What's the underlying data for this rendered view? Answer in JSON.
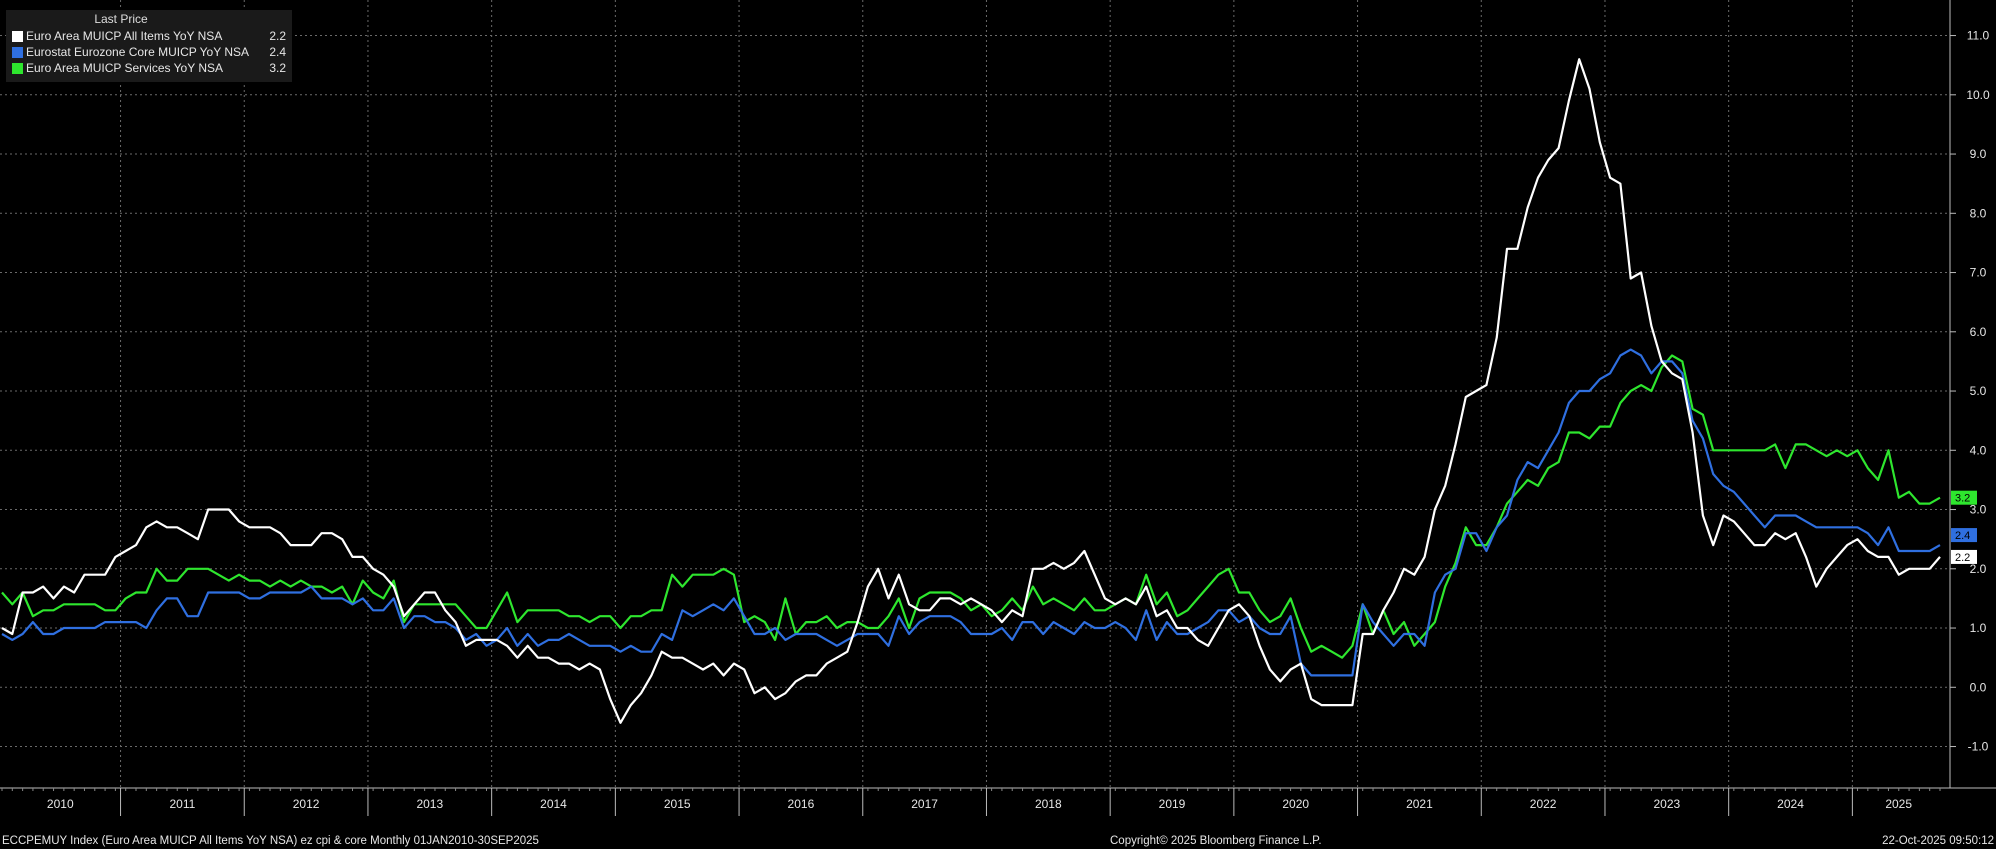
{
  "legend": {
    "header": "Last Price",
    "items": [
      {
        "name": "Euro Area MUICP All Items YoY NSA",
        "value": "2.2",
        "color": "#ffffff"
      },
      {
        "name": "Eurostat Eurozone Core MUICP YoY NSA",
        "value": "2.4",
        "color": "#2f6fe0"
      },
      {
        "name": "Euro Area MUICP Services YoY NSA",
        "value": "3.2",
        "color": "#2ee62e"
      }
    ]
  },
  "footer": {
    "left": "ECCPEMUY Index (Euro Area MUICP All Items YoY NSA) ez cpi & core Monthly 01JAN2010-30SEP2025",
    "center": "Copyright© 2025 Bloomberg Finance L.P.",
    "right": "22-Oct-2025 09:50:12"
  },
  "chart_data": {
    "type": "line",
    "x_start": "2010-01",
    "x_end": "2025-09",
    "frequency": "monthly",
    "ylim": [
      -1.7,
      11.6
    ],
    "y_ticks": [
      -1.0,
      0.0,
      1.0,
      2.0,
      3.0,
      4.0,
      5.0,
      6.0,
      7.0,
      8.0,
      9.0,
      10.0,
      11.0
    ],
    "x_ticks": [
      "2010",
      "2011",
      "2012",
      "2013",
      "2014",
      "2015",
      "2016",
      "2017",
      "2018",
      "2019",
      "2020",
      "2021",
      "2022",
      "2023",
      "2024",
      "2025"
    ],
    "grid": true,
    "legend_position": "top-left",
    "series": [
      {
        "name": "Euro Area MUICP All Items YoY NSA",
        "color": "#ffffff",
        "last": "2.2",
        "values": [
          1.0,
          0.9,
          1.6,
          1.6,
          1.7,
          1.5,
          1.7,
          1.6,
          1.9,
          1.9,
          1.9,
          2.2,
          2.3,
          2.4,
          2.7,
          2.8,
          2.7,
          2.7,
          2.6,
          2.5,
          3.0,
          3.0,
          3.0,
          2.8,
          2.7,
          2.7,
          2.7,
          2.6,
          2.4,
          2.4,
          2.4,
          2.6,
          2.6,
          2.5,
          2.2,
          2.2,
          2.0,
          1.9,
          1.7,
          1.2,
          1.4,
          1.6,
          1.6,
          1.3,
          1.1,
          0.7,
          0.8,
          0.8,
          0.8,
          0.7,
          0.5,
          0.7,
          0.5,
          0.5,
          0.4,
          0.4,
          0.3,
          0.4,
          0.3,
          -0.2,
          -0.6,
          -0.3,
          -0.1,
          0.2,
          0.6,
          0.5,
          0.5,
          0.4,
          0.3,
          0.4,
          0.2,
          0.4,
          0.3,
          -0.1,
          0.0,
          -0.2,
          -0.1,
          0.1,
          0.2,
          0.2,
          0.4,
          0.5,
          0.6,
          1.1,
          1.7,
          2.0,
          1.5,
          1.9,
          1.4,
          1.3,
          1.3,
          1.5,
          1.5,
          1.4,
          1.5,
          1.4,
          1.3,
          1.1,
          1.3,
          1.2,
          2.0,
          2.0,
          2.1,
          2.0,
          2.1,
          2.3,
          1.9,
          1.5,
          1.4,
          1.5,
          1.4,
          1.7,
          1.2,
          1.3,
          1.0,
          1.0,
          0.8,
          0.7,
          1.0,
          1.3,
          1.4,
          1.2,
          0.7,
          0.3,
          0.1,
          0.3,
          0.4,
          -0.2,
          -0.3,
          -0.3,
          -0.3,
          -0.3,
          0.9,
          0.9,
          1.3,
          1.6,
          2.0,
          1.9,
          2.2,
          3.0,
          3.4,
          4.1,
          4.9,
          5.0,
          5.1,
          5.9,
          7.4,
          7.4,
          8.1,
          8.6,
          8.9,
          9.1,
          9.9,
          10.6,
          10.1,
          9.2,
          8.6,
          8.5,
          6.9,
          7.0,
          6.1,
          5.5,
          5.3,
          5.2,
          4.3,
          2.9,
          2.4,
          2.9,
          2.8,
          2.6,
          2.4,
          2.4,
          2.6,
          2.5,
          2.6,
          2.2,
          1.7,
          2.0,
          2.2,
          2.4,
          2.5,
          2.3,
          2.2,
          2.2,
          1.9,
          2.0,
          2.0,
          2.0,
          2.2
        ]
      },
      {
        "name": "Eurostat Eurozone Core MUICP YoY NSA",
        "color": "#2f6fe0",
        "last": "2.4",
        "values": [
          0.9,
          0.8,
          0.9,
          1.1,
          0.9,
          0.9,
          1.0,
          1.0,
          1.0,
          1.0,
          1.1,
          1.1,
          1.1,
          1.1,
          1.0,
          1.3,
          1.5,
          1.5,
          1.2,
          1.2,
          1.6,
          1.6,
          1.6,
          1.6,
          1.5,
          1.5,
          1.6,
          1.6,
          1.6,
          1.6,
          1.7,
          1.5,
          1.5,
          1.5,
          1.4,
          1.5,
          1.3,
          1.3,
          1.5,
          1.0,
          1.2,
          1.2,
          1.1,
          1.1,
          1.0,
          0.8,
          0.9,
          0.7,
          0.8,
          1.0,
          0.7,
          0.9,
          0.7,
          0.8,
          0.8,
          0.9,
          0.8,
          0.7,
          0.7,
          0.7,
          0.6,
          0.7,
          0.6,
          0.6,
          0.9,
          0.8,
          1.3,
          1.2,
          1.3,
          1.4,
          1.3,
          1.5,
          1.2,
          0.9,
          0.9,
          1.0,
          0.8,
          0.9,
          0.9,
          0.9,
          0.8,
          0.7,
          0.8,
          0.9,
          0.9,
          0.9,
          0.7,
          1.2,
          0.9,
          1.1,
          1.2,
          1.2,
          1.2,
          1.1,
          0.9,
          0.9,
          0.9,
          1.0,
          0.8,
          1.1,
          1.1,
          0.9,
          1.1,
          1.0,
          0.9,
          1.1,
          1.0,
          1.0,
          1.1,
          1.0,
          0.8,
          1.3,
          0.8,
          1.1,
          0.9,
          0.9,
          1.0,
          1.1,
          1.3,
          1.3,
          1.1,
          1.2,
          1.0,
          0.9,
          0.9,
          1.2,
          0.4,
          0.2,
          0.2,
          0.2,
          0.2,
          0.2,
          1.4,
          1.1,
          0.9,
          0.7,
          0.9,
          0.9,
          0.7,
          1.6,
          1.9,
          2.0,
          2.6,
          2.6,
          2.3,
          2.7,
          2.9,
          3.5,
          3.8,
          3.7,
          4.0,
          4.3,
          4.8,
          5.0,
          5.0,
          5.2,
          5.3,
          5.6,
          5.7,
          5.6,
          5.3,
          5.5,
          5.5,
          5.3,
          4.5,
          4.2,
          3.6,
          3.4,
          3.3,
          3.1,
          2.9,
          2.7,
          2.9,
          2.9,
          2.9,
          2.8,
          2.7,
          2.7,
          2.7,
          2.7,
          2.7,
          2.6,
          2.4,
          2.7,
          2.3,
          2.3,
          2.3,
          2.3,
          2.4
        ]
      },
      {
        "name": "Euro Area MUICP Services YoY NSA",
        "color": "#2ee62e",
        "last": "3.2",
        "values": [
          1.6,
          1.4,
          1.6,
          1.2,
          1.3,
          1.3,
          1.4,
          1.4,
          1.4,
          1.4,
          1.3,
          1.3,
          1.5,
          1.6,
          1.6,
          2.0,
          1.8,
          1.8,
          2.0,
          2.0,
          2.0,
          1.9,
          1.8,
          1.9,
          1.8,
          1.8,
          1.7,
          1.8,
          1.7,
          1.8,
          1.7,
          1.7,
          1.6,
          1.7,
          1.4,
          1.8,
          1.6,
          1.5,
          1.8,
          1.1,
          1.4,
          1.4,
          1.4,
          1.4,
          1.4,
          1.2,
          1.0,
          1.0,
          1.3,
          1.6,
          1.1,
          1.3,
          1.3,
          1.3,
          1.3,
          1.2,
          1.2,
          1.1,
          1.2,
          1.2,
          1.0,
          1.2,
          1.2,
          1.3,
          1.3,
          1.9,
          1.7,
          1.9,
          1.9,
          1.9,
          2.0,
          1.9,
          1.1,
          1.2,
          1.1,
          0.8,
          1.5,
          0.9,
          1.1,
          1.1,
          1.2,
          1.0,
          1.1,
          1.1,
          1.0,
          1.0,
          1.2,
          1.5,
          1.0,
          1.5,
          1.6,
          1.6,
          1.6,
          1.5,
          1.3,
          1.4,
          1.2,
          1.3,
          1.5,
          1.3,
          1.7,
          1.4,
          1.5,
          1.4,
          1.3,
          1.5,
          1.3,
          1.3,
          1.4,
          1.5,
          1.4,
          1.9,
          1.4,
          1.6,
          1.2,
          1.3,
          1.5,
          1.7,
          1.9,
          2.0,
          1.6,
          1.6,
          1.3,
          1.1,
          1.2,
          1.5,
          1.0,
          0.6,
          0.7,
          0.6,
          0.5,
          0.7,
          1.4,
          0.9,
          1.3,
          0.9,
          1.1,
          0.7,
          0.9,
          1.1,
          1.7,
          2.1,
          2.7,
          2.4,
          2.4,
          2.7,
          3.1,
          3.3,
          3.5,
          3.4,
          3.7,
          3.8,
          4.3,
          4.3,
          4.2,
          4.4,
          4.4,
          4.8,
          5.0,
          5.1,
          5.0,
          5.4,
          5.6,
          5.5,
          4.7,
          4.6,
          4.0,
          4.0,
          4.0,
          4.0,
          4.0,
          4.0,
          4.1,
          3.7,
          4.1,
          4.1,
          4.0,
          3.9,
          4.0,
          3.9,
          4.0,
          3.7,
          3.5,
          4.0,
          3.2,
          3.3,
          3.1,
          3.1,
          3.2
        ]
      }
    ]
  }
}
